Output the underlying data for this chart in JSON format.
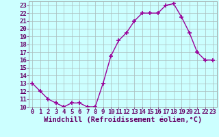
{
  "x": [
    0,
    1,
    2,
    3,
    4,
    5,
    6,
    7,
    8,
    9,
    10,
    11,
    12,
    13,
    14,
    15,
    16,
    17,
    18,
    19,
    20,
    21,
    22,
    23
  ],
  "y": [
    13,
    12,
    11,
    10.5,
    10,
    10.5,
    10.5,
    10,
    10,
    13,
    16.5,
    18.5,
    19.5,
    21,
    22,
    22,
    22,
    23,
    23.2,
    21.5,
    19.5,
    17,
    16,
    16
  ],
  "line_color": "#990099",
  "marker": "+",
  "marker_size": 4,
  "marker_lw": 1.2,
  "background_color": "#ccffff",
  "grid_color": "#aabbbb",
  "xlabel": "Windchill (Refroidissement éolien,°C)",
  "xlabel_color": "#660066",
  "tick_color": "#660066",
  "ylim_min": 10,
  "ylim_max": 23.5,
  "xlim_min": -0.5,
  "xlim_max": 23.5,
  "yticks": [
    10,
    11,
    12,
    13,
    14,
    15,
    16,
    17,
    18,
    19,
    20,
    21,
    22,
    23
  ],
  "xticks": [
    0,
    1,
    2,
    3,
    4,
    5,
    6,
    7,
    8,
    9,
    10,
    11,
    12,
    13,
    14,
    15,
    16,
    17,
    18,
    19,
    20,
    21,
    22,
    23
  ],
  "font_size": 6.5,
  "xlabel_font_size": 7.5,
  "linewidth": 1.0
}
